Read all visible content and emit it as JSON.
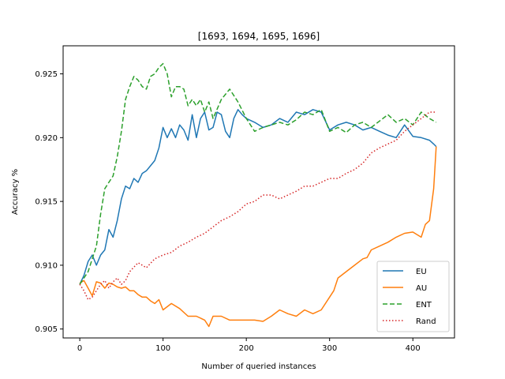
{
  "chart_data": {
    "type": "line",
    "title": "[1693, 1694, 1695, 1696]",
    "xlabel": "Number of queried instances",
    "ylabel": "Accuracy %",
    "xlim": [
      -20,
      450
    ],
    "ylim": [
      0.9043,
      0.9272
    ],
    "xticks": [
      0,
      100,
      200,
      300,
      400
    ],
    "yticks": [
      0.905,
      0.91,
      0.915,
      0.92,
      0.925
    ],
    "ytick_labels": [
      "0.905",
      "0.910",
      "0.915",
      "0.920",
      "0.925"
    ],
    "legend_position": "lower right",
    "grid": false,
    "series": [
      {
        "name": "EU",
        "color": "#1f77b4",
        "dash": "solid",
        "x": [
          0,
          5,
          10,
          15,
          20,
          25,
          30,
          35,
          40,
          45,
          50,
          55,
          60,
          65,
          70,
          75,
          80,
          85,
          90,
          95,
          100,
          105,
          110,
          115,
          120,
          125,
          130,
          135,
          140,
          145,
          150,
          155,
          160,
          165,
          170,
          175,
          180,
          185,
          190,
          195,
          200,
          210,
          220,
          230,
          240,
          250,
          260,
          270,
          280,
          290,
          300,
          310,
          320,
          330,
          340,
          350,
          360,
          370,
          380,
          390,
          400,
          410,
          420,
          425,
          428
        ],
        "y": [
          0.9085,
          0.9092,
          0.9103,
          0.9108,
          0.91,
          0.9108,
          0.9112,
          0.9128,
          0.9122,
          0.9135,
          0.9152,
          0.9162,
          0.916,
          0.9168,
          0.9165,
          0.9172,
          0.9174,
          0.9178,
          0.9182,
          0.9192,
          0.9208,
          0.92,
          0.9207,
          0.92,
          0.921,
          0.9206,
          0.9198,
          0.9218,
          0.92,
          0.9215,
          0.922,
          0.9206,
          0.9208,
          0.922,
          0.9218,
          0.9205,
          0.92,
          0.9215,
          0.9222,
          0.9218,
          0.9215,
          0.9212,
          0.9208,
          0.921,
          0.9215,
          0.9212,
          0.922,
          0.9218,
          0.9222,
          0.922,
          0.9206,
          0.921,
          0.9212,
          0.921,
          0.9206,
          0.9208,
          0.9205,
          0.9202,
          0.92,
          0.921,
          0.9201,
          0.92,
          0.9198,
          0.9195,
          0.9193
        ]
      },
      {
        "name": "AU",
        "color": "#ff7f0e",
        "dash": "solid",
        "x": [
          0,
          5,
          10,
          15,
          20,
          25,
          30,
          35,
          40,
          45,
          50,
          55,
          60,
          65,
          70,
          75,
          80,
          85,
          90,
          95,
          100,
          110,
          120,
          130,
          140,
          150,
          155,
          160,
          170,
          180,
          190,
          200,
          210,
          220,
          230,
          240,
          250,
          260,
          270,
          280,
          290,
          300,
          305,
          310,
          320,
          330,
          340,
          345,
          350,
          360,
          370,
          380,
          390,
          400,
          410,
          415,
          420,
          425,
          428
        ],
        "y": [
          0.9086,
          0.9088,
          0.9082,
          0.9076,
          0.9087,
          0.9086,
          0.9082,
          0.9086,
          0.9085,
          0.9083,
          0.9082,
          0.9083,
          0.908,
          0.908,
          0.9077,
          0.9075,
          0.9075,
          0.9072,
          0.907,
          0.9073,
          0.9065,
          0.907,
          0.9066,
          0.906,
          0.906,
          0.9057,
          0.9052,
          0.906,
          0.906,
          0.9057,
          0.9057,
          0.9057,
          0.9057,
          0.9056,
          0.906,
          0.9065,
          0.9062,
          0.906,
          0.9065,
          0.9062,
          0.9065,
          0.9075,
          0.908,
          0.909,
          0.9095,
          0.91,
          0.9105,
          0.9106,
          0.9112,
          0.9115,
          0.9118,
          0.9122,
          0.9125,
          0.9126,
          0.9122,
          0.9132,
          0.9135,
          0.916,
          0.9193
        ]
      },
      {
        "name": "ENT",
        "color": "#2ca02c",
        "dash": "dashed",
        "x": [
          0,
          5,
          10,
          15,
          20,
          25,
          30,
          35,
          40,
          45,
          50,
          55,
          60,
          65,
          70,
          75,
          80,
          85,
          90,
          95,
          100,
          105,
          110,
          115,
          120,
          125,
          130,
          135,
          140,
          145,
          150,
          155,
          160,
          170,
          180,
          190,
          200,
          210,
          220,
          230,
          240,
          250,
          260,
          270,
          280,
          290,
          300,
          310,
          320,
          330,
          340,
          350,
          360,
          370,
          380,
          390,
          400,
          410,
          420,
          428
        ],
        "y": [
          0.9085,
          0.909,
          0.9095,
          0.9105,
          0.9115,
          0.914,
          0.916,
          0.9165,
          0.917,
          0.9185,
          0.9205,
          0.923,
          0.924,
          0.9248,
          0.9245,
          0.924,
          0.9238,
          0.9248,
          0.925,
          0.9255,
          0.9258,
          0.925,
          0.9232,
          0.924,
          0.924,
          0.9238,
          0.9225,
          0.923,
          0.9225,
          0.923,
          0.922,
          0.9228,
          0.9215,
          0.923,
          0.9238,
          0.9228,
          0.9215,
          0.9205,
          0.9208,
          0.921,
          0.9212,
          0.921,
          0.9214,
          0.922,
          0.9218,
          0.9222,
          0.9205,
          0.9208,
          0.9204,
          0.921,
          0.9212,
          0.9208,
          0.9213,
          0.9218,
          0.9212,
          0.9215,
          0.921,
          0.922,
          0.9215,
          0.9212
        ]
      },
      {
        "name": "Rand",
        "color": "#d62728",
        "dash": "dotted",
        "x": [
          0,
          5,
          10,
          15,
          20,
          25,
          30,
          35,
          40,
          45,
          50,
          55,
          60,
          70,
          80,
          90,
          100,
          110,
          120,
          130,
          140,
          150,
          160,
          170,
          180,
          190,
          200,
          210,
          220,
          230,
          240,
          250,
          260,
          270,
          280,
          290,
          300,
          310,
          320,
          330,
          340,
          350,
          360,
          370,
          380,
          390,
          400,
          410,
          420,
          428
        ],
        "y": [
          0.9085,
          0.908,
          0.9073,
          0.9075,
          0.908,
          0.9085,
          0.9088,
          0.9082,
          0.9087,
          0.909,
          0.9085,
          0.9088,
          0.9095,
          0.9102,
          0.9098,
          0.9105,
          0.9108,
          0.911,
          0.9115,
          0.9118,
          0.9122,
          0.9125,
          0.913,
          0.9135,
          0.9138,
          0.9142,
          0.9148,
          0.915,
          0.9155,
          0.9155,
          0.9152,
          0.9155,
          0.9158,
          0.9162,
          0.9162,
          0.9165,
          0.9168,
          0.9168,
          0.9172,
          0.9175,
          0.918,
          0.9188,
          0.9192,
          0.9195,
          0.9198,
          0.9205,
          0.921,
          0.9215,
          0.922,
          0.922
        ]
      }
    ]
  }
}
